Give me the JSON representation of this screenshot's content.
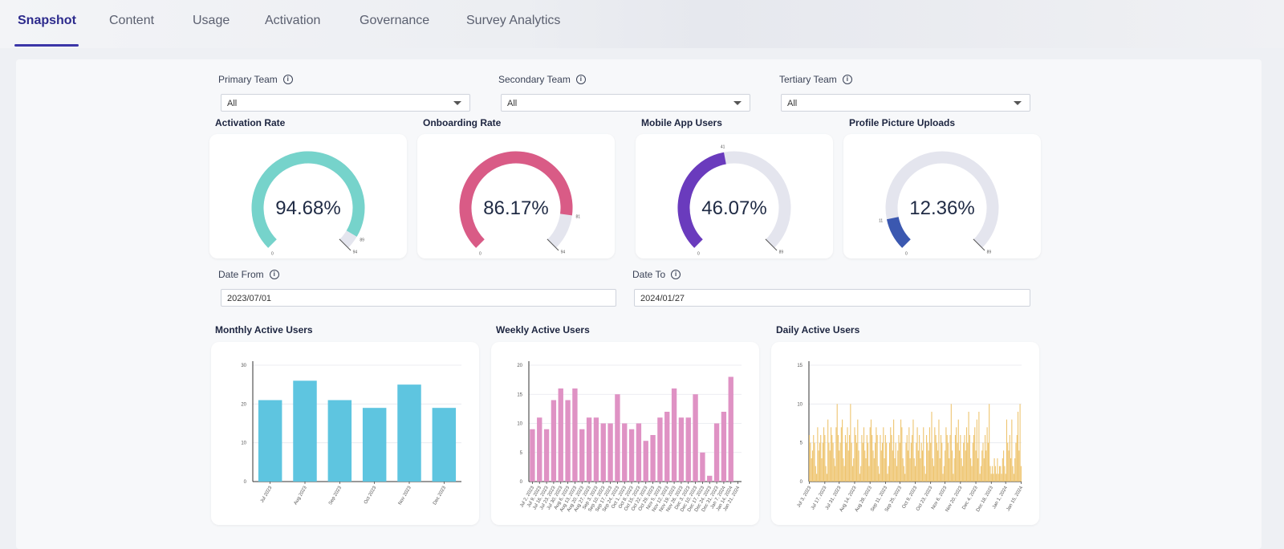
{
  "tabs": [
    {
      "label": "Snapshot",
      "active": true
    },
    {
      "label": "Content",
      "active": false
    },
    {
      "label": "Usage",
      "active": false
    },
    {
      "label": "Activation",
      "active": false
    },
    {
      "label": "Governance",
      "active": false
    },
    {
      "label": "Survey Analytics",
      "active": false
    }
  ],
  "filters": {
    "primary_team": {
      "label": "Primary Team",
      "value": "All"
    },
    "secondary_team": {
      "label": "Secondary Team",
      "value": "All"
    },
    "tertiary_team": {
      "label": "Tertiary Team",
      "value": "All"
    }
  },
  "dates": {
    "from": {
      "label": "Date From",
      "value": "2023/07/01"
    },
    "to": {
      "label": "Date To",
      "value": "2024/01/27"
    }
  },
  "gauges": [
    {
      "title": "Activation Rate",
      "value_label": "94.68%",
      "fraction": 0.9468,
      "color": "#76d3cb",
      "min_label": "0",
      "max_label": "94",
      "mark_label": "89"
    },
    {
      "title": "Onboarding Rate",
      "value_label": "86.17%",
      "fraction": 0.8617,
      "color": "#d95b86",
      "min_label": "0",
      "max_label": "94",
      "mark_label": "81"
    },
    {
      "title": "Mobile App Users",
      "value_label": "46.07%",
      "fraction": 0.4607,
      "color": "#6a3bbd",
      "min_label": "0",
      "max_label": "89",
      "mark_label": "41"
    },
    {
      "title": "Profile Picture Uploads",
      "value_label": "12.36%",
      "fraction": 0.1236,
      "color": "#3b58b0",
      "min_label": "0",
      "max_label": "89",
      "mark_label": "11"
    }
  ],
  "colors": {
    "gauge_track": "#e4e5ee",
    "mau_bar": "#5ec5e0",
    "wau_bar": "#df92c4",
    "dau_bar": "#eec46e",
    "accent": "#3b36a8"
  },
  "chart_data": [
    {
      "type": "bar",
      "title": "Monthly Active Users",
      "categories": [
        "Jul 2023",
        "Aug 2023",
        "Sep 2023",
        "Oct 2023",
        "Nov 2023",
        "Dec 2023"
      ],
      "values": [
        21,
        26,
        21,
        19,
        25,
        19
      ],
      "ylim": [
        0,
        30
      ],
      "yticks": [
        0,
        10,
        20,
        30
      ],
      "grid": true
    },
    {
      "type": "bar",
      "title": "Weekly Active Users",
      "categories": [
        "Jul 2, 2023",
        "Jul 9, 2023",
        "Jul 16, 2023",
        "Jul 23, 2023",
        "Jul 30, 2023",
        "Aug 6, 2023",
        "Aug 13, 2023",
        "Aug 20, 2023",
        "Aug 27, 2023",
        "Sep 3, 2023",
        "Sep 10, 2023",
        "Sep 17, 2023",
        "Sep 24, 2023",
        "Oct 1, 2023",
        "Oct 8, 2023",
        "Oct 15, 2023",
        "Oct 22, 2023",
        "Oct 29, 2023",
        "Nov 5, 2023",
        "Nov 12, 2023",
        "Nov 19, 2023",
        "Nov 26, 2023",
        "Dec 3, 2023",
        "Dec 10, 2023",
        "Dec 17, 2023",
        "Dec 24, 2023",
        "Dec 31, 2023",
        "Jan 7, 2024",
        "Jan 14, 2024",
        "Jan 21, 2024"
      ],
      "values": [
        9,
        11,
        9,
        14,
        16,
        14,
        16,
        9,
        11,
        11,
        10,
        10,
        15,
        10,
        9,
        10,
        7,
        8,
        11,
        12,
        16,
        11,
        11,
        15,
        5,
        1,
        10,
        12,
        18,
        0
      ],
      "ylim": [
        0,
        20
      ],
      "yticks": [
        0,
        5,
        10,
        15,
        20
      ],
      "xtick_labels": [
        "Jul 2, 2023",
        "Jul 16, 2023",
        "Jul 30, 2023",
        "Aug 13, 2023",
        "Aug 27, 2023",
        "Sep 10, 2023",
        "Sep 24, 2023",
        "Oct 8, 2023",
        "Oct 22, 2023",
        "Nov 5, 2023",
        "Nov 19, 2023",
        "Dec 3, 2023",
        "Dec 17, 2023",
        "Dec 31, 2023",
        "Jan 14, 2024"
      ],
      "grid": true
    },
    {
      "type": "bar",
      "title": "Daily Active Users",
      "x_start": "2023-07-01",
      "values": [
        6,
        5,
        3,
        4,
        6,
        5,
        2,
        1,
        7,
        4,
        5,
        6,
        3,
        5,
        7,
        6,
        2,
        1,
        8,
        5,
        4,
        7,
        6,
        5,
        3,
        2,
        7,
        10,
        6,
        4,
        5,
        7,
        8,
        3,
        2,
        6,
        5,
        7,
        4,
        6,
        10,
        5,
        2,
        3,
        7,
        6,
        5,
        8,
        4,
        1,
        2,
        6,
        5,
        7,
        4,
        3,
        6,
        5,
        2,
        7,
        8,
        6,
        4,
        3,
        5,
        7,
        6,
        2,
        1,
        6,
        4,
        5,
        7,
        3,
        6,
        5,
        1,
        2,
        5,
        7,
        6,
        4,
        8,
        3,
        5,
        2,
        4,
        6,
        5,
        8,
        7,
        3,
        2,
        1,
        5,
        6,
        4,
        7,
        3,
        5,
        6,
        8,
        3,
        2,
        5,
        7,
        4,
        6,
        3,
        5,
        4,
        7,
        2,
        1,
        6,
        5,
        4,
        7,
        5,
        9,
        3,
        2,
        7,
        6,
        5,
        4,
        8,
        3,
        6,
        5,
        1,
        2,
        4,
        7,
        6,
        5,
        3,
        6,
        10,
        4,
        1,
        3,
        6,
        7,
        5,
        8,
        4,
        6,
        3,
        2,
        5,
        6,
        4,
        7,
        5,
        9,
        6,
        3,
        2,
        5,
        6,
        7,
        4,
        8,
        3,
        9,
        1,
        2,
        4,
        5,
        3,
        6,
        4,
        7,
        5,
        10,
        2,
        1,
        2,
        1,
        3,
        2,
        1,
        3,
        1,
        2,
        2,
        1,
        3,
        4,
        2,
        1,
        8,
        5,
        4,
        6,
        3,
        8,
        2,
        1,
        3,
        5,
        6,
        9,
        4,
        10,
        2
      ],
      "ylim": [
        0,
        15
      ],
      "yticks": [
        0,
        5,
        10,
        15
      ],
      "xtick_labels": [
        "Jul 3, 2023",
        "Jul 17, 2023",
        "Jul 31, 2023",
        "Aug 14, 2023",
        "Aug 28, 2023",
        "Sep 11, 2023",
        "Sep 25, 2023",
        "Oct 9, 2023",
        "Oct 23, 2023",
        "Nov 6, 2023",
        "Nov 20, 2023",
        "Dec 4, 2023",
        "Dec 18, 2023",
        "Jan 1, 2024",
        "Jan 15, 2024"
      ],
      "grid": true
    }
  ]
}
